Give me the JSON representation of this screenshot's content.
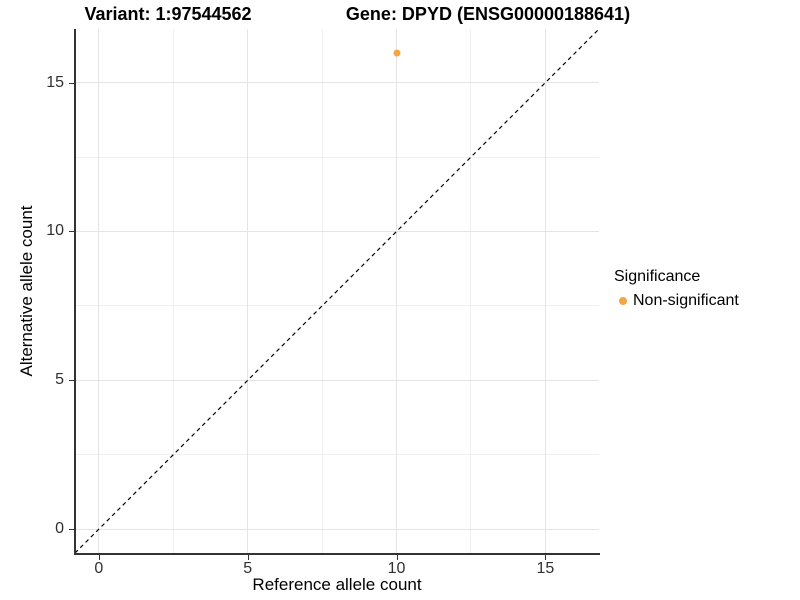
{
  "titles": {
    "variant": "Variant: 1:97544562",
    "gene": "Gene: DPYD (ENSG00000188641)"
  },
  "axes": {
    "x_label": "Reference allele count",
    "y_label": "Alternative allele count",
    "x_ticks": [
      "0",
      "5",
      "10",
      "15"
    ],
    "y_ticks": [
      "0",
      "5",
      "10",
      "15"
    ]
  },
  "legend": {
    "title": "Significance",
    "items": [
      {
        "label": "Non-significant",
        "color": "#F7A445"
      }
    ]
  },
  "colors": {
    "point_orange": "#F7A445",
    "grid_major": "#e4e4e4",
    "grid_minor": "#f0f0f0",
    "axis_line": "#333333",
    "reference_line": "#000000"
  },
  "chart_data": {
    "type": "scatter",
    "title": "Variant: 1:97544562 | Gene: DPYD (ENSG00000188641)",
    "xlabel": "Reference allele count",
    "ylabel": "Alternative allele count",
    "xlim": [
      -0.8,
      16.8
    ],
    "ylim": [
      -0.8,
      16.8
    ],
    "grid": {
      "major": [
        0,
        5,
        10,
        15
      ],
      "minor": [
        2.5,
        7.5,
        12.5
      ]
    },
    "series": [
      {
        "name": "Non-significant",
        "color": "#F7A445",
        "points": [
          {
            "x": 10,
            "y": 16
          }
        ]
      }
    ],
    "reference_line": {
      "type": "identity",
      "style": "dashed",
      "from": [
        -0.8,
        -0.8
      ],
      "to": [
        16.8,
        16.8
      ]
    },
    "legend_title": "Significance",
    "legend_position": "right",
    "grid_on": true
  }
}
